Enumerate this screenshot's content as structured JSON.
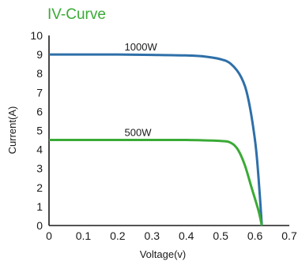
{
  "chart_data": {
    "type": "line",
    "title": "IV-Curve",
    "xlabel": "Voltage(v)",
    "ylabel": "Current(A)",
    "xlim": [
      0,
      0.7
    ],
    "ylim": [
      0,
      10
    ],
    "xticks": [
      "0",
      "0.1",
      "0.2",
      "0.3",
      "0.4",
      "0.5",
      "0.6",
      "0.7"
    ],
    "yticks": [
      "0",
      "1",
      "2",
      "3",
      "4",
      "5",
      "6",
      "7",
      "8",
      "9",
      "10"
    ],
    "grid": false,
    "series": [
      {
        "name": "1000W",
        "color": "#2e6fa8",
        "x": [
          0,
          0.1,
          0.2,
          0.3,
          0.4,
          0.45,
          0.5,
          0.53,
          0.56,
          0.58,
          0.6,
          0.61,
          0.62
        ],
        "y": [
          9.0,
          9.0,
          9.0,
          8.98,
          8.95,
          8.9,
          8.75,
          8.5,
          7.8,
          6.7,
          4.5,
          2.6,
          0.0
        ]
      },
      {
        "name": "500W",
        "color": "#3aaa35",
        "x": [
          0,
          0.1,
          0.2,
          0.3,
          0.4,
          0.5,
          0.53,
          0.55,
          0.57,
          0.59,
          0.61,
          0.62
        ],
        "y": [
          4.5,
          4.5,
          4.5,
          4.5,
          4.5,
          4.45,
          4.35,
          4.0,
          3.2,
          2.0,
          0.8,
          0.0
        ]
      }
    ]
  }
}
